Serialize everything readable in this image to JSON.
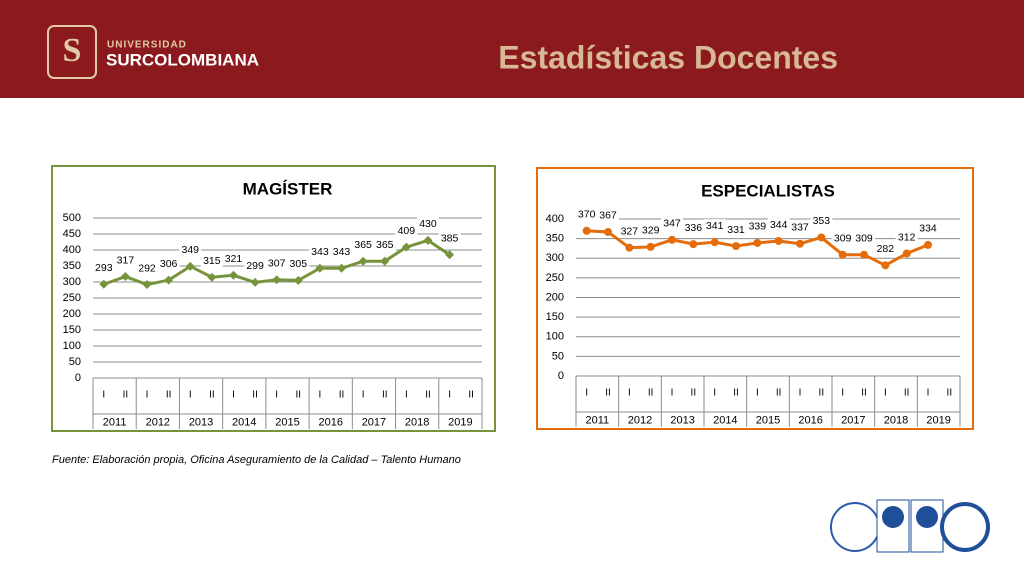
{
  "header": {
    "logo_line1": "UNIVERSIDAD",
    "logo_line2": "SURCOLOMBIANA",
    "title": "Estadísticas Docentes"
  },
  "source": "Fuente: Elaboración propia, Oficina Aseguramiento de la Calidad – Talento Humano",
  "chart_data": [
    {
      "type": "line",
      "title": "MAGÍSTER",
      "color": "#77933c",
      "marker": "diamond",
      "grid": true,
      "categories": [
        "I",
        "II",
        "I",
        "II",
        "I",
        "II",
        "I",
        "II",
        "I",
        "II",
        "I",
        "II",
        "I",
        "II",
        "I",
        "II",
        "I",
        "II"
      ],
      "category_groups": [
        "2011",
        "2012",
        "2013",
        "2014",
        "2015",
        "2016",
        "2017",
        "2018",
        "2019"
      ],
      "values": [
        293,
        317,
        292,
        306,
        349,
        315,
        321,
        299,
        307,
        305,
        343,
        343,
        365,
        365,
        409,
        430,
        385,
        null
      ],
      "ylim": [
        0,
        500
      ],
      "yticks": [
        0,
        50,
        100,
        150,
        200,
        250,
        300,
        350,
        400,
        450,
        500
      ]
    },
    {
      "type": "line",
      "title": "ESPECIALISTAS",
      "color": "#e46c0a",
      "marker": "circle",
      "grid": true,
      "categories": [
        "I",
        "II",
        "I",
        "II",
        "I",
        "II",
        "I",
        "II",
        "I",
        "II",
        "I",
        "II",
        "I",
        "II",
        "I",
        "II",
        "I",
        "II"
      ],
      "category_groups": [
        "2011",
        "2012",
        "2013",
        "2014",
        "2015",
        "2016",
        "2017",
        "2018",
        "2019"
      ],
      "values": [
        370,
        367,
        327,
        329,
        347,
        336,
        341,
        331,
        339,
        344,
        337,
        353,
        309,
        309,
        282,
        312,
        334,
        null
      ],
      "ylim": [
        0,
        400
      ],
      "yticks": [
        0,
        50,
        100,
        150,
        200,
        250,
        300,
        350,
        400
      ]
    }
  ]
}
